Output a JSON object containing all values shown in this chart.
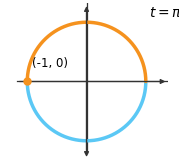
{
  "title_fontsize": 10,
  "orange_color": "#F5921E",
  "blue_color": "#5BC8F5",
  "point_color": "#F5921E",
  "point_x": -1,
  "point_y": 0,
  "point_label": "(-1, 0)",
  "point_fontsize": 8.5,
  "axis_color": "#333333",
  "xlim": [
    -1.28,
    1.38
  ],
  "ylim": [
    -1.32,
    1.32
  ],
  "figsize": [
    1.79,
    1.63
  ],
  "dpi": 100,
  "circle_lw": 2.5,
  "axis_lw": 0.9,
  "arrow_mutation_scale": 7
}
